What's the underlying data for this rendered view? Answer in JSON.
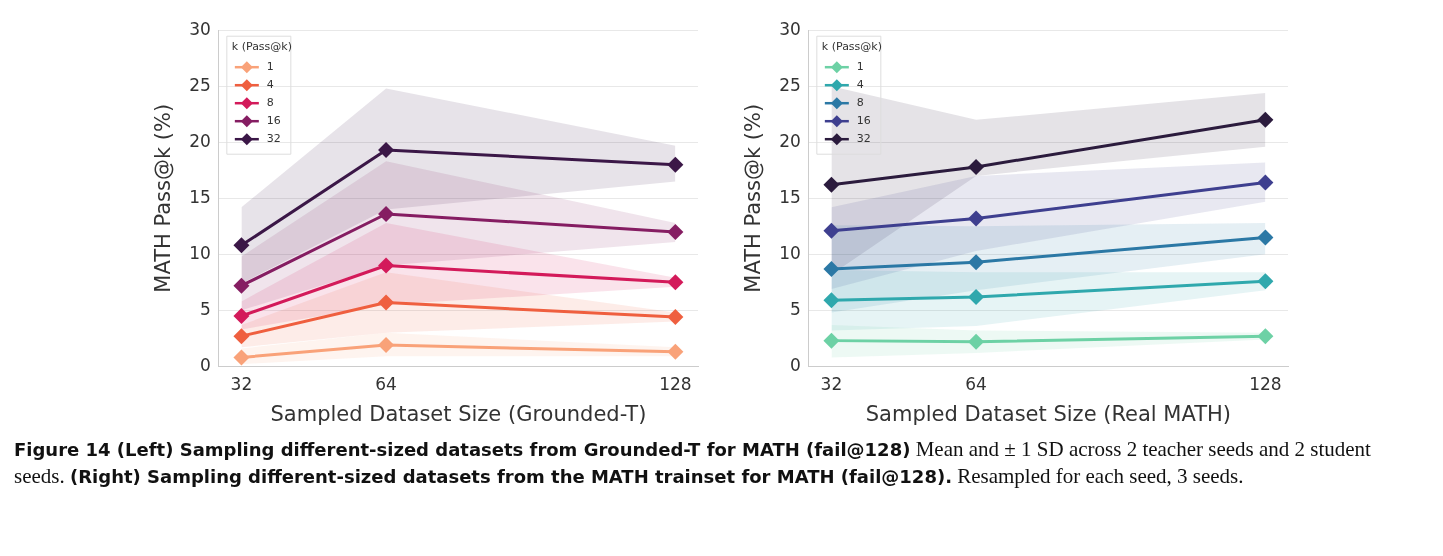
{
  "chart_data": [
    {
      "type": "line",
      "xlabel": "Sampled Dataset Size (Grounded-T)",
      "ylabel": "MATH Pass@k (%)",
      "legend_title": "k (Pass@k)",
      "legend": "top left",
      "grid": "y",
      "marker": "diamond",
      "line_style": "solid",
      "x": [
        32,
        64,
        128
      ],
      "xlim": [
        27,
        133
      ],
      "xticks": [
        32,
        64,
        128
      ],
      "ylim": [
        0,
        30
      ],
      "yticks": [
        0,
        5,
        10,
        15,
        20,
        25,
        30
      ],
      "series": [
        {
          "name": "1",
          "color": "#f9a279",
          "values": [
            0.8,
            1.9,
            1.3
          ],
          "lower": [
            0.2,
            0.9,
            0.9
          ],
          "upper": [
            1.6,
            3.0,
            1.7
          ]
        },
        {
          "name": "4",
          "color": "#ef5f3f",
          "values": [
            2.7,
            5.7,
            4.4
          ],
          "lower": [
            1.7,
            3.0,
            4.0
          ],
          "upper": [
            3.7,
            8.4,
            4.8
          ]
        },
        {
          "name": "8",
          "color": "#d31a5a",
          "values": [
            4.5,
            9.0,
            7.5
          ],
          "lower": [
            3.3,
            5.5,
            7.1
          ],
          "upper": [
            5.8,
            12.8,
            7.9
          ]
        },
        {
          "name": "16",
          "color": "#851d62",
          "values": [
            7.2,
            13.6,
            12.0
          ],
          "lower": [
            5.0,
            9.0,
            11.1
          ],
          "upper": [
            9.8,
            18.3,
            12.8
          ]
        },
        {
          "name": "32",
          "color": "#3b1747",
          "values": [
            10.8,
            19.3,
            18.0
          ],
          "lower": [
            7.4,
            14.0,
            16.5
          ],
          "upper": [
            14.2,
            24.8,
            19.7
          ]
        }
      ],
      "annotations": [
        "Figure 14 (Left) Sampling different-sized datasets from Grounded-T for MATH (fail@128)",
        "Mean and ± 1 SD across 2 teacher seeds and 2 student seeds.",
        "(Right) Sampling different-sized datasets from the MATH trainset for MATH (fail@128).",
        "Resampled for each seed, 3 seeds."
      ]
    },
    {
      "type": "line",
      "xlabel": "Sampled Dataset Size (Real MATH)",
      "ylabel": "MATH Pass@k (%)",
      "legend_title": "k (Pass@k)",
      "legend": "top left",
      "grid": "y",
      "marker": "diamond",
      "line_style": "solid",
      "x": [
        32,
        64,
        128
      ],
      "xlim": [
        27,
        133
      ],
      "xticks": [
        32,
        64,
        128
      ],
      "ylim": [
        0,
        30
      ],
      "yticks": [
        0,
        5,
        10,
        15,
        20,
        25,
        30
      ],
      "series": [
        {
          "name": "1",
          "color": "#6dd1a5",
          "values": [
            2.3,
            2.2,
            2.7
          ],
          "lower": [
            0.8,
            1.2,
            2.4
          ],
          "upper": [
            3.7,
            3.2,
            3.0
          ]
        },
        {
          "name": "4",
          "color": "#2fa8ad",
          "values": [
            5.9,
            6.2,
            7.6
          ],
          "lower": [
            3.2,
            3.6,
            6.8
          ],
          "upper": [
            8.6,
            8.4,
            8.4
          ]
        },
        {
          "name": "8",
          "color": "#2b78a5",
          "values": [
            8.7,
            9.3,
            11.5
          ],
          "lower": [
            4.8,
            6.8,
            10.0
          ],
          "upper": [
            12.6,
            12.5,
            12.8
          ]
        },
        {
          "name": "16",
          "color": "#3e3f8f",
          "values": [
            12.1,
            13.2,
            16.4
          ],
          "lower": [
            6.9,
            10.3,
            14.7
          ],
          "upper": [
            14.2,
            17.0,
            18.2
          ]
        },
        {
          "name": "32",
          "color": "#2b1b3d",
          "values": [
            16.2,
            17.8,
            22.0
          ],
          "lower": [
            8.2,
            17.0,
            19.6
          ],
          "upper": [
            25.0,
            22.0,
            24.4
          ]
        }
      ]
    }
  ]
}
